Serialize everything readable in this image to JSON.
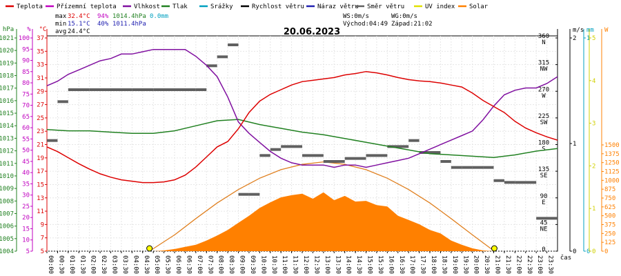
{
  "chart_data": {
    "type": "line",
    "title": "20.06.2023",
    "legend": [
      {
        "name": "Teplota",
        "color": "#dd0000"
      },
      {
        "name": "Přízemní teplota",
        "color": "#c000c0"
      },
      {
        "name": "Vlhkost",
        "color": "#8010a0"
      },
      {
        "name": "Tlak",
        "color": "#208020"
      },
      {
        "name": "Srážky",
        "color": "#00a0c0"
      },
      {
        "name": "Rychlost větru",
        "color": "#000000"
      },
      {
        "name": "Náraz větru",
        "color": "#2020b0"
      },
      {
        "name": "Směr větru",
        "color": "#606060"
      },
      {
        "name": "UV index",
        "color": "#e0e000"
      },
      {
        "name": "Solar",
        "color": "#ff8000"
      }
    ],
    "stats": {
      "max_label": "max",
      "min_label": "min",
      "avg_label": "avg",
      "max_temp": "32.4°C",
      "max_hum": "94%",
      "max_press": "1014.4hPa",
      "max_rain": "0.0mm",
      "min_temp": "15.1°C",
      "min_hum": "40%",
      "min_press": "1011.4hPa",
      "avg_temp": "24.4°C"
    },
    "wind_info": {
      "ws": "WS:0m/s",
      "wg": "WG:0m/s",
      "sunrise": "Východ:04:49",
      "sunset": "Západ:21:02"
    },
    "axes": {
      "hpa_unit": "hPa",
      "hpa_ticks": [
        "1021",
        "1020",
        "1019",
        "1018",
        "1017",
        "1016",
        "1015",
        "1014",
        "1013",
        "1012",
        "1011",
        "1010",
        "1009",
        "1008",
        "1007",
        "1006",
        "1005",
        "1004"
      ],
      "pct_unit": "%",
      "pct_ticks": [
        "100",
        "95",
        "90",
        "85",
        "80",
        "75",
        "70",
        "65",
        "60",
        "55",
        "50",
        "45",
        "40",
        "35",
        "30",
        "25",
        "20",
        "15",
        "10",
        "5"
      ],
      "c_unit": "°C",
      "c_ticks": [
        "37",
        "35",
        "33",
        "31",
        "29",
        "27",
        "25",
        "23",
        "21",
        "19",
        "17",
        "15",
        "13",
        "11",
        "9",
        "7",
        "5"
      ],
      "ms_unit": "m/s",
      "ms_ticks": [
        "2",
        "1",
        "0"
      ],
      "mm_unit": "mm",
      "mm_ticks": [
        "1",
        "0"
      ],
      "uv_ticks": [
        "5",
        "4",
        "3",
        "2",
        "1",
        "0"
      ],
      "w_unit": "W",
      "w_ticks": [
        "1500",
        "1375",
        "1250",
        "1125",
        "1000",
        "875",
        "750",
        "625",
        "500",
        "375",
        "250",
        "125",
        "0"
      ],
      "dir_ticks": [
        {
          "deg": "360",
          "dir": "N"
        },
        {
          "deg": "315",
          "dir": "NW"
        },
        {
          "deg": "270",
          "dir": "W"
        },
        {
          "deg": "225",
          "dir": "SW"
        },
        {
          "deg": "180",
          "dir": "S"
        },
        {
          "deg": "135",
          "dir": "SE"
        },
        {
          "deg": "90",
          "dir": "E"
        },
        {
          "deg": "45",
          "dir": "NE"
        },
        {
          "deg": "0",
          "dir": ""
        }
      ],
      "time_label": "čas",
      "x_ticks": [
        "00:00",
        "00:30",
        "01:00",
        "01:30",
        "02:00",
        "02:30",
        "03:00",
        "03:30",
        "04:00",
        "04:30",
        "05:00",
        "05:30",
        "06:00",
        "06:30",
        "07:00",
        "07:30",
        "08:00",
        "08:30",
        "09:00",
        "09:30",
        "10:00",
        "10:30",
        "11:00",
        "11:30",
        "12:00",
        "12:30",
        "13:00",
        "13:30",
        "14:00",
        "14:30",
        "15:00",
        "15:30",
        "16:00",
        "16:30",
        "17:00",
        "17:30",
        "18:00",
        "18:30",
        "19:00",
        "19:30",
        "20:00",
        "20:30",
        "21:00",
        "21:30",
        "22:00",
        "22:30",
        "23:00",
        "23:30"
      ]
    },
    "ranges": {
      "hours": [
        0,
        24
      ],
      "temperature_c": [
        5,
        37
      ],
      "humidity_pct": [
        5,
        100
      ],
      "pressure_hpa": [
        1004,
        1021
      ],
      "wind_dir_deg": [
        0,
        360
      ],
      "solar_w": [
        0,
        1500
      ]
    },
    "grid": true,
    "series": [
      {
        "name": "Teplota",
        "unit": "°C",
        "x": [
          0,
          0.5,
          1,
          1.5,
          2,
          2.5,
          3,
          3.5,
          4,
          4.5,
          5,
          5.5,
          6,
          6.5,
          7,
          7.5,
          8,
          8.5,
          9,
          9.5,
          10,
          10.5,
          11,
          11.5,
          12,
          12.5,
          13,
          13.5,
          14,
          14.5,
          15,
          15.5,
          16,
          16.5,
          17,
          17.5,
          18,
          18.5,
          19,
          19.5,
          20,
          20.5,
          21,
          21.5,
          22,
          22.5,
          23,
          23.5,
          24
        ],
        "y": [
          20.5,
          19.8,
          18.9,
          18.0,
          17.2,
          16.5,
          16.0,
          15.6,
          15.4,
          15.2,
          15.2,
          15.3,
          15.6,
          16.3,
          17.5,
          19.0,
          20.5,
          21.3,
          23.2,
          25.6,
          27.3,
          28.3,
          29.0,
          29.7,
          30.2,
          30.4,
          30.6,
          30.8,
          31.2,
          31.4,
          31.7,
          31.5,
          31.2,
          30.8,
          30.5,
          30.3,
          30.2,
          30.0,
          29.7,
          29.4,
          28.5,
          27.4,
          26.5,
          25.6,
          24.3,
          23.3,
          22.6,
          22.0,
          21.5
        ]
      },
      {
        "name": "Vlhkost",
        "unit": "%",
        "x": [
          0,
          0.5,
          1,
          1.5,
          2,
          2.5,
          3,
          3.5,
          4,
          4.5,
          5,
          5.5,
          6,
          6.5,
          7,
          7.5,
          8,
          8.5,
          9,
          9.5,
          10,
          10.5,
          11,
          11.5,
          12,
          12.5,
          13,
          13.5,
          14,
          14.5,
          15,
          15.5,
          16,
          16.5,
          17,
          17.5,
          18,
          18.5,
          19,
          19.5,
          20,
          20.5,
          21,
          21.5,
          22,
          22.5,
          23,
          23.5,
          24
        ],
        "y": [
          78,
          80,
          83,
          85,
          87,
          89,
          90,
          92,
          92,
          93,
          94,
          94,
          94,
          94,
          91,
          87,
          82,
          73,
          62,
          57,
          53,
          49,
          46,
          44,
          43,
          43,
          43,
          42,
          43,
          43,
          42,
          43,
          44,
          45,
          46,
          48,
          50,
          52,
          54,
          56,
          58,
          63,
          69,
          74,
          76,
          77,
          77,
          79,
          82
        ]
      },
      {
        "name": "Tlak",
        "unit": "hPa",
        "x": [
          0,
          1,
          2,
          3,
          4,
          5,
          6,
          7,
          8,
          9,
          10,
          11,
          12,
          13,
          14,
          15,
          16,
          17,
          18,
          19,
          20,
          21,
          22,
          23,
          24
        ],
        "y": [
          1013.6,
          1013.5,
          1013.5,
          1013.4,
          1013.3,
          1013.3,
          1013.5,
          1013.9,
          1014.3,
          1014.4,
          1014.0,
          1013.7,
          1013.4,
          1013.2,
          1012.9,
          1012.6,
          1012.3,
          1012.0,
          1011.7,
          1011.6,
          1011.5,
          1011.4,
          1011.6,
          1011.9,
          1012.1
        ]
      },
      {
        "name": "Směr větru",
        "unit": "°",
        "x": [
          0,
          0.5,
          1,
          2,
          3,
          4,
          5,
          6,
          7,
          7.5,
          8,
          8.5,
          9,
          9.5,
          10,
          10.5,
          11,
          12,
          13,
          14,
          15,
          16,
          17,
          17.5,
          18,
          18.5,
          19,
          19.5,
          20,
          20.5,
          21,
          21.5,
          22,
          23,
          24
        ],
        "y": [
          185,
          250,
          270,
          270,
          270,
          270,
          270,
          270,
          270,
          310,
          325,
          345,
          95,
          95,
          160,
          170,
          175,
          160,
          150,
          155,
          160,
          175,
          185,
          165,
          165,
          150,
          140,
          140,
          140,
          140,
          118,
          115,
          115,
          55,
          55
        ]
      },
      {
        "name": "Solar",
        "unit": "W",
        "x": [
          0,
          4.5,
          5,
          5.5,
          6,
          6.5,
          7,
          7.5,
          8,
          8.5,
          9,
          9.5,
          10,
          10.5,
          11,
          11.5,
          12,
          12.5,
          13,
          13.5,
          14,
          14.5,
          15,
          15.5,
          16,
          16.5,
          17,
          17.5,
          18,
          18.5,
          19,
          19.5,
          20,
          20.5,
          21,
          24
        ],
        "y": [
          0,
          0,
          0,
          10,
          30,
          60,
          90,
          150,
          220,
          300,
          400,
          500,
          610,
          690,
          760,
          790,
          810,
          740,
          830,
          720,
          780,
          700,
          710,
          650,
          630,
          500,
          440,
          380,
          300,
          250,
          150,
          90,
          40,
          10,
          0,
          0
        ]
      },
      {
        "name": "Solar max",
        "unit": "W",
        "x": [
          4.82,
          6,
          7,
          8,
          9,
          10,
          11,
          12,
          13,
          14,
          15,
          16,
          17,
          18,
          19,
          20,
          21.03
        ],
        "y": [
          0,
          230,
          460,
          680,
          870,
          1030,
          1150,
          1225,
          1260,
          1225,
          1150,
          1030,
          870,
          680,
          460,
          230,
          0
        ]
      }
    ]
  }
}
